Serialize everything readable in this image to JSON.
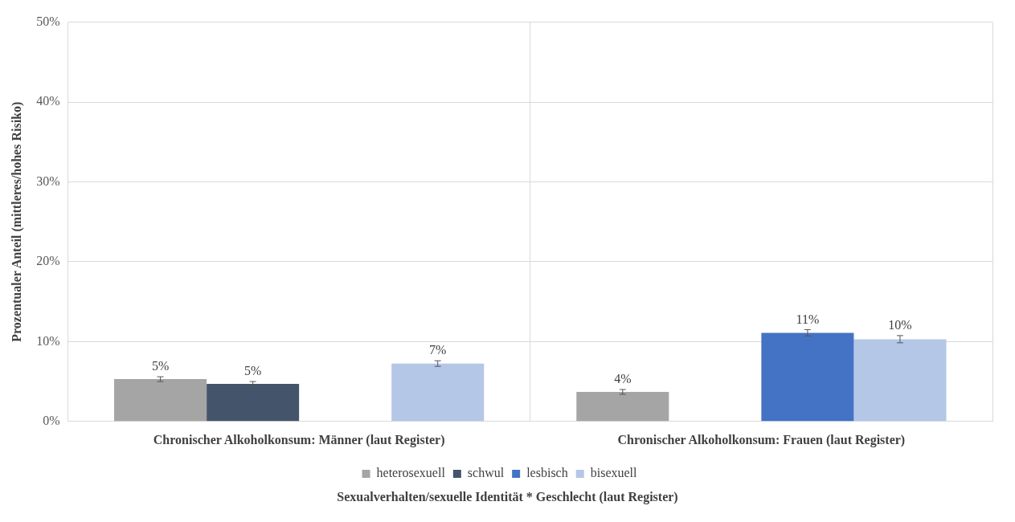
{
  "chart_data": {
    "type": "bar",
    "xlabel": "Sexualverhalten/sexuelle Identität * Geschlecht (laut Register)",
    "ylabel": "Prozentualer Anteil (mittleres/hohes Risiko)",
    "categories": [
      "Chronischer Alkoholkonsum: Männer (laut Register)",
      "Chronischer Alkoholkonsum: Frauen (laut Register)"
    ],
    "series": [
      {
        "name": "heterosexuell",
        "color": "#a5a5a5",
        "values": [
          5.3,
          3.7
        ],
        "errors": [
          0.3,
          0.3
        ],
        "value_labels": [
          "5%",
          "4%"
        ]
      },
      {
        "name": "schwul",
        "color": "#44546a",
        "values": [
          4.7,
          null
        ],
        "errors": [
          0.3,
          null
        ],
        "value_labels": [
          "5%",
          null
        ]
      },
      {
        "name": "lesbisch",
        "color": "#4472c4",
        "values": [
          null,
          11.1
        ],
        "errors": [
          null,
          0.4
        ],
        "value_labels": [
          null,
          "11%"
        ]
      },
      {
        "name": "bisexuell",
        "color": "#b4c7e7",
        "values": [
          7.25,
          10.3
        ],
        "errors": [
          0.35,
          0.45
        ],
        "value_labels": [
          "7%",
          "10%"
        ]
      }
    ],
    "ylim": [
      0,
      50
    ],
    "yticks": [
      {
        "value": 0,
        "label": "0%"
      },
      {
        "value": 10,
        "label": "10%"
      },
      {
        "value": 20,
        "label": "20%"
      },
      {
        "value": 30,
        "label": "30%"
      },
      {
        "value": 40,
        "label": "40%"
      },
      {
        "value": 50,
        "label": "50%"
      }
    ],
    "grid": true,
    "legend": "bottom"
  }
}
